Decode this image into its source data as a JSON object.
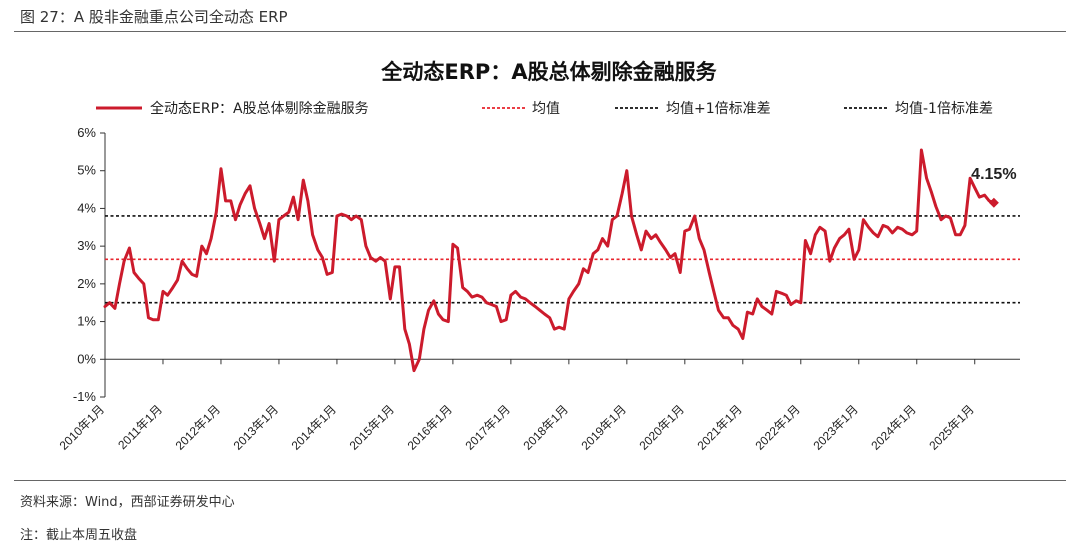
{
  "figure": {
    "caption": "图 27：A 股非金融重点公司全动态 ERP",
    "source": "资料来源：Wind，西部证券研发中心",
    "note": "注：截止本周五收盘"
  },
  "colors": {
    "series": "#cc1b2c",
    "mean": "#e8242d",
    "band": "#111111"
  },
  "chart_data": {
    "type": "line",
    "title": "全动态ERP：A股总体剔除金融服务",
    "legend": [
      "全动态ERP：A股总体剔除金融服务",
      "均值",
      "均值+1倍标准差",
      "均值-1倍标准差"
    ],
    "legend_position": "top",
    "ylim": [
      -1,
      6
    ],
    "yticks": [
      -1,
      0,
      1,
      2,
      3,
      4,
      5,
      6
    ],
    "ytick_labels": [
      "-1%",
      "0%",
      "1%",
      "2%",
      "3%",
      "4%",
      "5%",
      "6%"
    ],
    "xtick_labels": [
      "2010年1月",
      "2011年1月",
      "2012年1月",
      "2013年1月",
      "2014年1月",
      "2015年1月",
      "2016年1月",
      "2017年1月",
      "2018年1月",
      "2019年1月",
      "2020年1月",
      "2021年1月",
      "2022年1月",
      "2023年1月",
      "2024年1月",
      "2025年1月"
    ],
    "x_range": [
      2010.0,
      2025.66
    ],
    "reference_lines": [
      {
        "name": "均值",
        "value": 2.65
      },
      {
        "name": "均值+1倍标准差",
        "value": 3.8
      },
      {
        "name": "均值-1倍标准差",
        "value": 1.5
      }
    ],
    "annotation": "4.15%",
    "series": [
      {
        "name": "全动态ERP：A股总体剔除金融服务",
        "points": [
          [
            2010.0,
            1.4
          ],
          [
            2010.08,
            1.5
          ],
          [
            2010.17,
            1.35
          ],
          [
            2010.25,
            2.0
          ],
          [
            2010.33,
            2.6
          ],
          [
            2010.42,
            2.95
          ],
          [
            2010.5,
            2.3
          ],
          [
            2010.58,
            2.15
          ],
          [
            2010.67,
            2.0
          ],
          [
            2010.75,
            1.1
          ],
          [
            2010.83,
            1.05
          ],
          [
            2010.92,
            1.05
          ],
          [
            2011.0,
            1.8
          ],
          [
            2011.08,
            1.7
          ],
          [
            2011.17,
            1.9
          ],
          [
            2011.25,
            2.1
          ],
          [
            2011.33,
            2.6
          ],
          [
            2011.42,
            2.4
          ],
          [
            2011.5,
            2.25
          ],
          [
            2011.58,
            2.2
          ],
          [
            2011.67,
            3.0
          ],
          [
            2011.75,
            2.8
          ],
          [
            2011.83,
            3.2
          ],
          [
            2011.92,
            3.9
          ],
          [
            2012.0,
            5.05
          ],
          [
            2012.08,
            4.2
          ],
          [
            2012.17,
            4.2
          ],
          [
            2012.25,
            3.7
          ],
          [
            2012.33,
            4.1
          ],
          [
            2012.42,
            4.4
          ],
          [
            2012.5,
            4.6
          ],
          [
            2012.58,
            4.0
          ],
          [
            2012.67,
            3.6
          ],
          [
            2012.75,
            3.2
          ],
          [
            2012.83,
            3.6
          ],
          [
            2012.92,
            2.6
          ],
          [
            2013.0,
            3.7
          ],
          [
            2013.08,
            3.8
          ],
          [
            2013.17,
            3.9
          ],
          [
            2013.25,
            4.3
          ],
          [
            2013.33,
            3.7
          ],
          [
            2013.42,
            4.75
          ],
          [
            2013.5,
            4.2
          ],
          [
            2013.58,
            3.3
          ],
          [
            2013.67,
            2.9
          ],
          [
            2013.75,
            2.7
          ],
          [
            2013.83,
            2.25
          ],
          [
            2013.92,
            2.3
          ],
          [
            2014.0,
            3.8
          ],
          [
            2014.08,
            3.85
          ],
          [
            2014.17,
            3.8
          ],
          [
            2014.25,
            3.7
          ],
          [
            2014.33,
            3.8
          ],
          [
            2014.42,
            3.7
          ],
          [
            2014.5,
            3.0
          ],
          [
            2014.58,
            2.7
          ],
          [
            2014.67,
            2.6
          ],
          [
            2014.75,
            2.7
          ],
          [
            2014.83,
            2.6
          ],
          [
            2014.92,
            1.6
          ],
          [
            2015.0,
            2.45
          ],
          [
            2015.08,
            2.45
          ],
          [
            2015.17,
            0.8
          ],
          [
            2015.25,
            0.4
          ],
          [
            2015.33,
            -0.3
          ],
          [
            2015.42,
            0.0
          ],
          [
            2015.5,
            0.8
          ],
          [
            2015.58,
            1.3
          ],
          [
            2015.67,
            1.55
          ],
          [
            2015.75,
            1.2
          ],
          [
            2015.83,
            1.05
          ],
          [
            2015.92,
            1.0
          ],
          [
            2016.0,
            3.05
          ],
          [
            2016.08,
            2.95
          ],
          [
            2016.17,
            1.9
          ],
          [
            2016.25,
            1.8
          ],
          [
            2016.33,
            1.65
          ],
          [
            2016.42,
            1.7
          ],
          [
            2016.5,
            1.65
          ],
          [
            2016.58,
            1.5
          ],
          [
            2016.67,
            1.45
          ],
          [
            2016.75,
            1.4
          ],
          [
            2016.83,
            1.0
          ],
          [
            2016.92,
            1.05
          ],
          [
            2017.0,
            1.7
          ],
          [
            2017.08,
            1.8
          ],
          [
            2017.17,
            1.65
          ],
          [
            2017.25,
            1.6
          ],
          [
            2017.33,
            1.5
          ],
          [
            2017.42,
            1.4
          ],
          [
            2017.5,
            1.3
          ],
          [
            2017.58,
            1.2
          ],
          [
            2017.67,
            1.1
          ],
          [
            2017.75,
            0.8
          ],
          [
            2017.83,
            0.85
          ],
          [
            2017.92,
            0.8
          ],
          [
            2018.0,
            1.6
          ],
          [
            2018.08,
            1.8
          ],
          [
            2018.17,
            2.0
          ],
          [
            2018.25,
            2.4
          ],
          [
            2018.33,
            2.3
          ],
          [
            2018.42,
            2.8
          ],
          [
            2018.5,
            2.9
          ],
          [
            2018.58,
            3.2
          ],
          [
            2018.67,
            3.0
          ],
          [
            2018.75,
            3.7
          ],
          [
            2018.83,
            3.8
          ],
          [
            2018.92,
            4.4
          ],
          [
            2019.0,
            5.0
          ],
          [
            2019.08,
            3.8
          ],
          [
            2019.17,
            3.3
          ],
          [
            2019.25,
            2.9
          ],
          [
            2019.33,
            3.4
          ],
          [
            2019.42,
            3.2
          ],
          [
            2019.5,
            3.3
          ],
          [
            2019.58,
            3.1
          ],
          [
            2019.67,
            2.9
          ],
          [
            2019.75,
            2.7
          ],
          [
            2019.83,
            2.8
          ],
          [
            2019.92,
            2.3
          ],
          [
            2020.0,
            3.4
          ],
          [
            2020.08,
            3.45
          ],
          [
            2020.17,
            3.8
          ],
          [
            2020.25,
            3.2
          ],
          [
            2020.33,
            2.9
          ],
          [
            2020.42,
            2.3
          ],
          [
            2020.5,
            1.8
          ],
          [
            2020.58,
            1.3
          ],
          [
            2020.67,
            1.1
          ],
          [
            2020.75,
            1.1
          ],
          [
            2020.83,
            0.9
          ],
          [
            2020.92,
            0.8
          ],
          [
            2021.0,
            0.55
          ],
          [
            2021.08,
            1.25
          ],
          [
            2021.17,
            1.2
          ],
          [
            2021.25,
            1.6
          ],
          [
            2021.33,
            1.4
          ],
          [
            2021.42,
            1.3
          ],
          [
            2021.5,
            1.2
          ],
          [
            2021.58,
            1.8
          ],
          [
            2021.67,
            1.75
          ],
          [
            2021.75,
            1.7
          ],
          [
            2021.83,
            1.45
          ],
          [
            2021.92,
            1.55
          ],
          [
            2022.0,
            1.5
          ],
          [
            2022.08,
            3.15
          ],
          [
            2022.17,
            2.8
          ],
          [
            2022.25,
            3.3
          ],
          [
            2022.33,
            3.5
          ],
          [
            2022.42,
            3.4
          ],
          [
            2022.5,
            2.6
          ],
          [
            2022.58,
            2.95
          ],
          [
            2022.67,
            3.2
          ],
          [
            2022.75,
            3.3
          ],
          [
            2022.83,
            3.45
          ],
          [
            2022.92,
            2.65
          ],
          [
            2023.0,
            2.9
          ],
          [
            2023.08,
            3.7
          ],
          [
            2023.17,
            3.5
          ],
          [
            2023.25,
            3.35
          ],
          [
            2023.33,
            3.25
          ],
          [
            2023.42,
            3.55
          ],
          [
            2023.5,
            3.5
          ],
          [
            2023.58,
            3.35
          ],
          [
            2023.67,
            3.5
          ],
          [
            2023.75,
            3.45
          ],
          [
            2023.83,
            3.35
          ],
          [
            2023.92,
            3.3
          ],
          [
            2024.0,
            3.4
          ],
          [
            2024.08,
            5.55
          ],
          [
            2024.17,
            4.8
          ],
          [
            2024.25,
            4.45
          ],
          [
            2024.33,
            4.05
          ],
          [
            2024.42,
            3.7
          ],
          [
            2024.5,
            3.8
          ],
          [
            2024.58,
            3.75
          ],
          [
            2024.67,
            3.3
          ],
          [
            2024.75,
            3.3
          ],
          [
            2024.83,
            3.55
          ],
          [
            2024.92,
            4.8
          ],
          [
            2025.0,
            4.55
          ],
          [
            2025.08,
            4.3
          ],
          [
            2025.17,
            4.35
          ],
          [
            2025.25,
            4.2
          ],
          [
            2025.33,
            4.15
          ]
        ]
      }
    ]
  }
}
